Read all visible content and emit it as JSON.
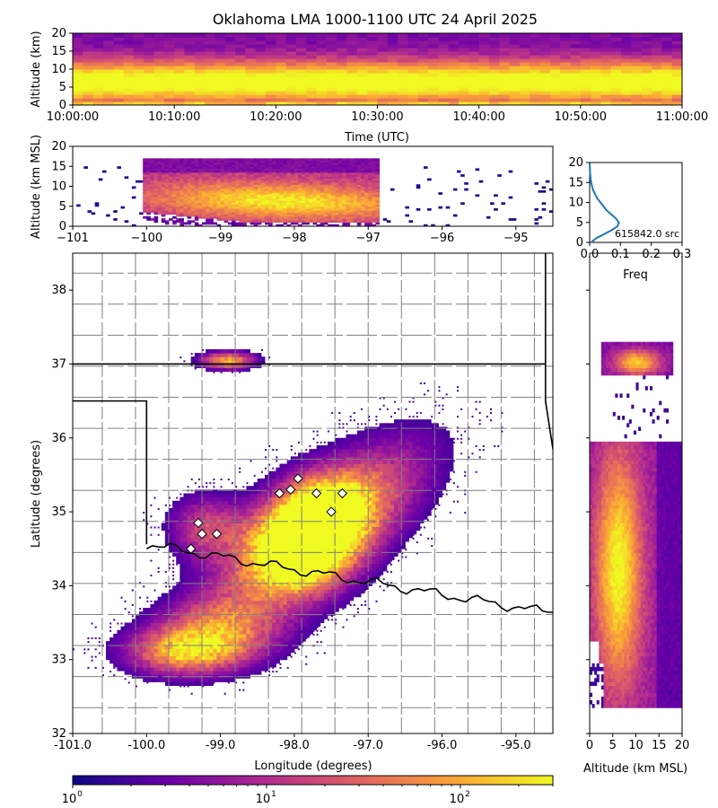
{
  "title": "Oklahoma LMA 1000-1100 UTC 24 April 2025",
  "colors": {
    "density_ramp": [
      "#0d0887",
      "#6a00a8",
      "#b12a90",
      "#e16462",
      "#fca636",
      "#f0f921"
    ],
    "freq_line": "#1f77b4",
    "state_border": "#000000",
    "county_border": "#808080",
    "station_marker": "#ffffff"
  },
  "chart_data": [
    {
      "type": "heatmap",
      "name": "time-height",
      "ylabel": "Altitude (km)",
      "xlabel": "Time (UTC)",
      "xticks": [
        "10:00:00",
        "10:10:00",
        "10:20:00",
        "10:30:00",
        "10:40:00",
        "10:50:00",
        "11:00:00"
      ],
      "yticks": [
        "0",
        "5",
        "10",
        "15",
        "20"
      ],
      "ylim": [
        0,
        20
      ],
      "xlim": [
        "10:00:00",
        "11:00:00"
      ],
      "description_values": {
        "peak_altitude_km": [
          5,
          12
        ]
      }
    },
    {
      "type": "heatmap",
      "name": "longitude-altitude",
      "ylabel": "Altitude (km MSL)",
      "xticks": [
        "−101",
        "−100",
        "−99",
        "−98",
        "−97",
        "−96",
        "−95"
      ],
      "yticks": [
        "0",
        "5",
        "10",
        "15",
        "20"
      ],
      "xlim": [
        -101,
        -94.5
      ],
      "ylim": [
        0,
        20
      ]
    },
    {
      "type": "line",
      "name": "altitude-frequency",
      "xlabel": "Freq",
      "xticks": [
        "0.0",
        "0.1",
        "0.2",
        "0.3"
      ],
      "yticks": [
        "0",
        "5",
        "10",
        "15",
        "20"
      ],
      "xlim": [
        0,
        0.3
      ],
      "ylim": [
        0,
        20
      ],
      "annotation": "615842.0 src",
      "freq": [
        0.005,
        0.02,
        0.045,
        0.07,
        0.09,
        0.095,
        0.085,
        0.07,
        0.055,
        0.045,
        0.035,
        0.025,
        0.018,
        0.012,
        0.008,
        0.005,
        0.003,
        0.002,
        0.001,
        0.0005,
        0.0
      ],
      "altitude": [
        0,
        1,
        2,
        3,
        4,
        5,
        6,
        7,
        8,
        9,
        10,
        11,
        12,
        13,
        14,
        15,
        16,
        17,
        18,
        19,
        20
      ]
    },
    {
      "type": "heatmap",
      "name": "plan-view",
      "xlabel": "Longitude (degrees)",
      "ylabel": "Latitude (degrees)",
      "xticks": [
        "-101.0",
        "-100.0",
        "-99.0",
        "-98.0",
        "-97.0",
        "-96.0",
        "-95.0"
      ],
      "yticks": [
        "32",
        "33",
        "34",
        "35",
        "36",
        "37",
        "38"
      ],
      "xlim": [
        -101,
        -94.5
      ],
      "ylim": [
        32,
        38.5
      ],
      "stations": [
        {
          "lon": -98.2,
          "lat": 35.25
        },
        {
          "lon": -98.05,
          "lat": 35.3
        },
        {
          "lon": -97.7,
          "lat": 35.25
        },
        {
          "lon": -97.35,
          "lat": 35.25
        },
        {
          "lon": -97.5,
          "lat": 35.0
        },
        {
          "lon": -97.95,
          "lat": 35.45
        },
        {
          "lon": -99.3,
          "lat": 34.85
        },
        {
          "lon": -99.25,
          "lat": 34.7
        },
        {
          "lon": -99.05,
          "lat": 34.7
        },
        {
          "lon": -99.4,
          "lat": 34.5
        }
      ]
    },
    {
      "type": "heatmap",
      "name": "altitude-latitude",
      "xlabel": "Altitude (km MSL)",
      "xticks": [
        "0",
        "5",
        "10",
        "15",
        "20"
      ],
      "xlim": [
        0,
        20
      ],
      "ylim": [
        32,
        38.5
      ]
    },
    {
      "type": "colorbar",
      "name": "source-density",
      "scale": "log",
      "ticks": [
        {
          "base": "10",
          "exp": "0"
        },
        {
          "base": "10",
          "exp": "1"
        },
        {
          "base": "10",
          "exp": "2"
        }
      ],
      "range": [
        1,
        300
      ]
    }
  ]
}
